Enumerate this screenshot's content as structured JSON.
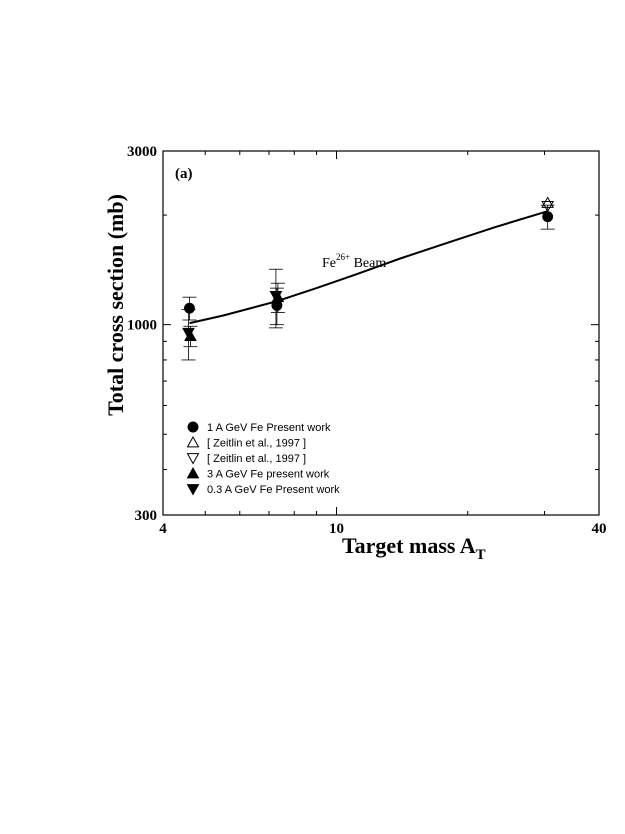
{
  "chart_data": {
    "type": "scatter",
    "panel_label": "(a)",
    "xlabel": "Target mass A",
    "xlabel_subscript": "T",
    "ylabel": "Total cross section (mb)",
    "xscale": "log",
    "yscale": "log",
    "xlim": [
      4,
      40
    ],
    "ylim": [
      300,
      3000
    ],
    "x_ticks": [
      4,
      10,
      40
    ],
    "y_ticks": [
      300,
      1000,
      3000
    ],
    "grid": false,
    "legend_position": "bottom-left",
    "annotation": {
      "text": "Fe",
      "superscript": "26+",
      "suffix": " Beam",
      "x": 11,
      "y": 1620
    },
    "series": [
      {
        "name": "1 A GeV Fe Present work",
        "marker": "circle-filled",
        "points": [
          {
            "x": 4.6,
            "y": 1110,
            "err": 80
          },
          {
            "x": 7.3,
            "y": 1130,
            "err": 130
          },
          {
            "x": 30.5,
            "y": 1980,
            "err": 150
          }
        ]
      },
      {
        "name": "[ Zeitlin et al., 1997 ]",
        "marker": "triangle-up-open",
        "points": [
          {
            "x": 30.5,
            "y": 2160,
            "err": 0
          }
        ]
      },
      {
        "name": "[ Zeitlin et al., 1997 ]",
        "marker": "triangle-down-open",
        "points": [
          {
            "x": 30.5,
            "y": 2120,
            "err": 0
          }
        ]
      },
      {
        "name": "3 A GeV Fe present work",
        "marker": "triangle-up-filled",
        "points": [
          {
            "x": 4.6,
            "y": 930,
            "err": 60
          },
          {
            "x": 7.3,
            "y": 1190,
            "err": 110
          }
        ]
      },
      {
        "name": "0.3 A GeV Fe Present work",
        "marker": "triangle-down-filled",
        "points": [
          {
            "x": 4.6,
            "y": 950,
            "err": 150
          },
          {
            "x": 7.3,
            "y": 1200,
            "err": 220
          }
        ]
      }
    ],
    "fit_line": {
      "x": [
        4.6,
        5.5,
        7.3,
        9,
        11,
        14,
        18,
        23,
        30.5
      ],
      "y": [
        1010,
        1060,
        1160,
        1260,
        1370,
        1520,
        1680,
        1850,
        2050
      ]
    }
  }
}
